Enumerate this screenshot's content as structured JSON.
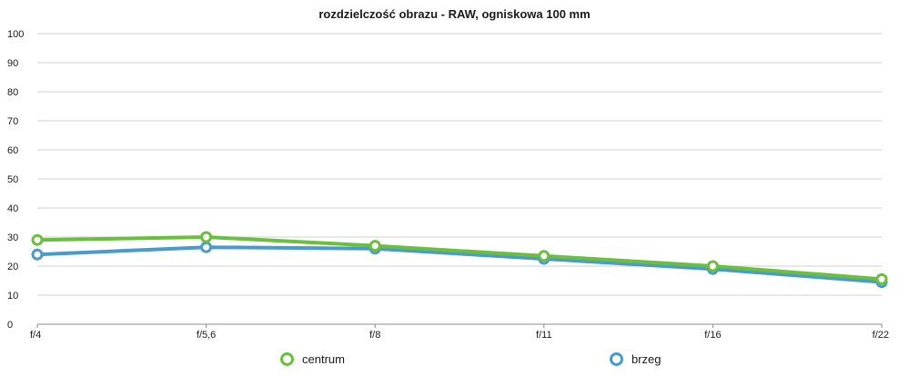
{
  "chart_data": {
    "type": "line",
    "title": "rozdzielczość obrazu - RAW, ogniskowa 100 mm",
    "xlabel": "",
    "ylabel": "",
    "categories": [
      "f/4",
      "f/5,6",
      "f/8",
      "f/11",
      "f/16",
      "f/22"
    ],
    "ylim": [
      0,
      100
    ],
    "yticks": [
      0,
      10,
      20,
      30,
      40,
      50,
      60,
      70,
      80,
      90,
      100
    ],
    "grid": true,
    "legend": "bottom",
    "series": [
      {
        "name": "centrum",
        "color": "#6bbf3f",
        "values": [
          29,
          30,
          27,
          23.5,
          20,
          15.5
        ]
      },
      {
        "name": "brzeg",
        "color": "#4a9bc9",
        "values": [
          24,
          26.5,
          26,
          22.5,
          19,
          14.5
        ]
      }
    ]
  }
}
